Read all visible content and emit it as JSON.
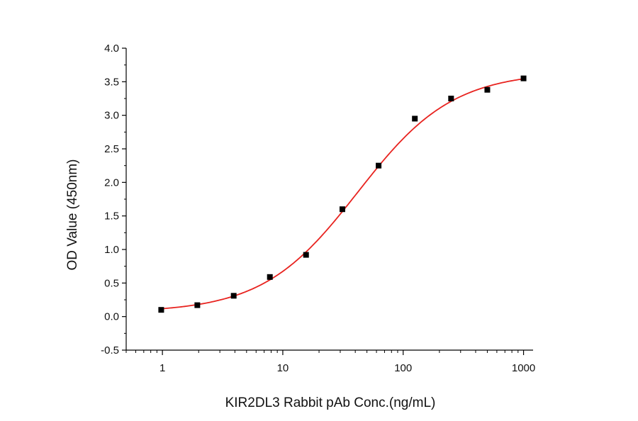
{
  "chart_data": {
    "type": "scatter",
    "xlabel": "KIR2DL3 Rabbit pAb Conc.(ng/mL)",
    "ylabel": "OD Value (450nm)",
    "x_scale": "log",
    "xlim": [
      0.5,
      1200
    ],
    "ylim": [
      -0.5,
      4.0
    ],
    "x_ticks": [
      1,
      10,
      100,
      1000
    ],
    "x_tick_labels": [
      "1",
      "10",
      "100",
      "1000"
    ],
    "y_ticks": [
      -0.5,
      0.0,
      0.5,
      1.0,
      1.5,
      2.0,
      2.5,
      3.0,
      3.5,
      4.0
    ],
    "y_tick_labels": [
      "-0.5",
      "0.0",
      "0.5",
      "1.0",
      "1.5",
      "2.0",
      "2.5",
      "3.0",
      "3.5",
      "4.0"
    ],
    "grid": false,
    "legend": "none",
    "series": [
      {
        "x": [
          0.977,
          1.95,
          3.91,
          7.81,
          15.6,
          31.25,
          62.5,
          125,
          250,
          500,
          1000
        ],
        "y": [
          0.1,
          0.17,
          0.31,
          0.59,
          0.92,
          1.6,
          2.25,
          2.95,
          3.25,
          3.38,
          3.55
        ],
        "marker": "square",
        "marker_color": "#000000"
      }
    ],
    "fit_curve": {
      "model": "4PL",
      "bottom": 0.06,
      "top": 3.65,
      "ec50": 42,
      "hill": 1.1,
      "color": "#e8231f"
    }
  }
}
